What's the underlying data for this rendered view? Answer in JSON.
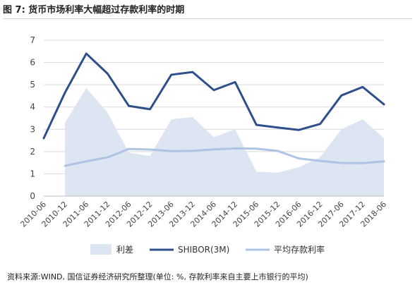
{
  "figure_title": "图 7:  货币市场利率大幅超过存款利率的时期",
  "source_note": "资料来源:WIND, 国信证券经济研究所整理(单位: %, 存款利率来自主要上市银行的平均)",
  "colors": {
    "spread": "#dde4f2",
    "shibor": "#2e4f8c",
    "deposit": "#adc4e4"
  },
  "chart_data": {
    "type": "line",
    "title": "",
    "xlabel": "",
    "ylabel": "",
    "ylim": [
      0,
      7
    ],
    "yticks": [
      "0",
      "1",
      "2",
      "3",
      "4",
      "5",
      "6",
      "7"
    ],
    "xticks": [
      "2010-06",
      "2010-12",
      "2011-06",
      "2011-12",
      "2012-06",
      "2012-12",
      "2013-06",
      "2013-12",
      "2014-06",
      "2014-12",
      "2015-06",
      "2015-12",
      "2016-06",
      "2016-12",
      "2017-06",
      "2017-12",
      "2018-06"
    ],
    "x": [
      "2010-06",
      "2010-12",
      "2011-06",
      "2011-12",
      "2012-06",
      "2012-12",
      "2013-06",
      "2013-12",
      "2014-06",
      "2014-12",
      "2015-06",
      "2015-12",
      "2016-06",
      "2016-12",
      "2017-06",
      "2017-12",
      "2018-06"
    ],
    "series": [
      {
        "name": "利差",
        "kind": "area",
        "values": [
          null,
          3.3,
          4.85,
          3.75,
          1.95,
          1.8,
          3.45,
          3.55,
          2.65,
          3.0,
          1.1,
          1.05,
          1.3,
          1.75,
          3.0,
          3.45,
          2.6
        ]
      },
      {
        "name": "SHIBOR(3M)",
        "kind": "line",
        "values": [
          2.6,
          4.65,
          6.4,
          5.5,
          4.05,
          3.9,
          5.45,
          5.57,
          4.76,
          5.12,
          3.2,
          3.08,
          2.97,
          3.24,
          4.52,
          4.9,
          4.12
        ]
      },
      {
        "name": "平均存款利率",
        "kind": "line",
        "values": [
          null,
          1.36,
          1.56,
          1.74,
          2.12,
          2.09,
          2.02,
          2.03,
          2.1,
          2.14,
          2.13,
          2.03,
          1.69,
          1.58,
          1.49,
          1.48,
          1.56
        ]
      }
    ],
    "grid": true,
    "legend": "bottom"
  }
}
